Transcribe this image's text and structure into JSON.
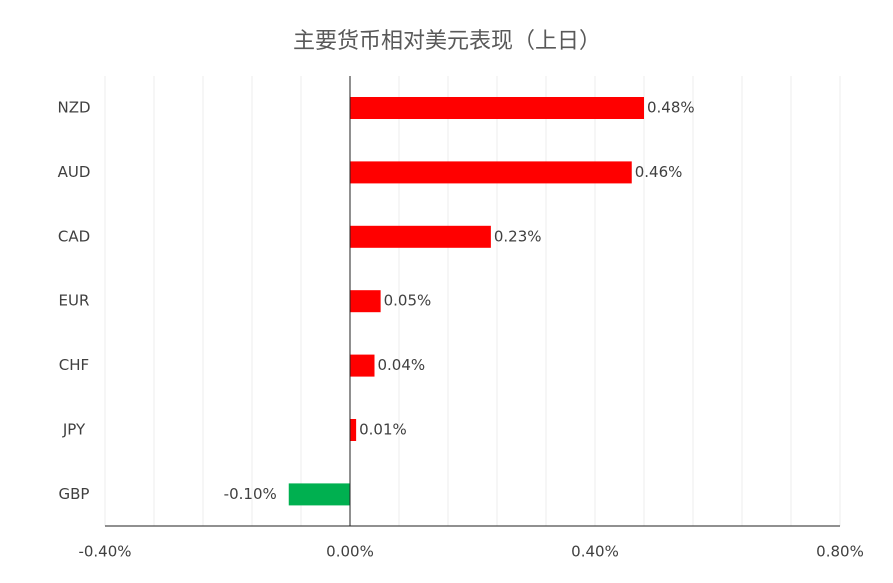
{
  "chart_data": {
    "type": "barh",
    "title": "主要货币相对美元表现（上日）",
    "categories": [
      "NZD",
      "AUD",
      "CAD",
      "EUR",
      "CHF",
      "JPY",
      "GBP"
    ],
    "values": [
      0.48,
      0.46,
      0.23,
      0.05,
      0.04,
      0.01,
      -0.1
    ],
    "value_labels": [
      "0.48%",
      "0.46%",
      "0.23%",
      "0.05%",
      "0.04%",
      "0.01%",
      "-0.10%"
    ],
    "colors": [
      "#ff0000",
      "#ff0000",
      "#ff0000",
      "#ff0000",
      "#ff0000",
      "#ff0000",
      "#00b050"
    ],
    "xlim": [
      -0.4,
      0.8
    ],
    "xticks": [
      {
        "value": -0.4,
        "label": "-0.40%"
      },
      {
        "value": 0,
        "label": "0.00%"
      },
      {
        "value": 0.4,
        "label": "0.40%"
      },
      {
        "value": 0.8,
        "label": "0.80%"
      }
    ],
    "minor_xticks": [
      -0.32,
      -0.24,
      -0.16,
      -0.08,
      0.08,
      0.16,
      0.24,
      0.32,
      0.48,
      0.56,
      0.64,
      0.72
    ],
    "grid": true
  }
}
